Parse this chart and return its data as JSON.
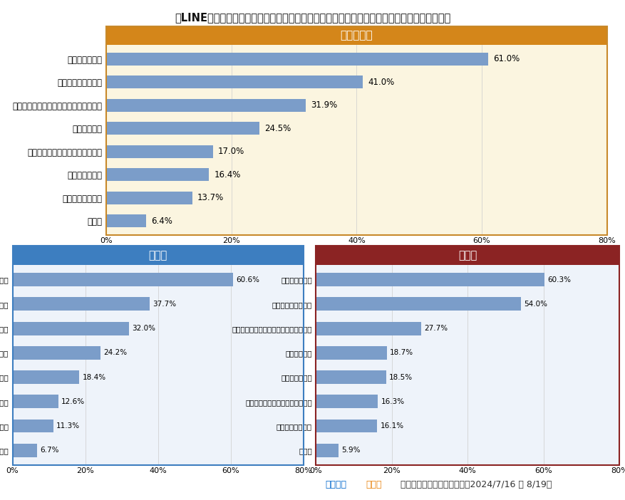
{
  "title": "》LINEを選んだ人へ「メッセージ上で会話を終わらせたいときはどうしてる？　（複数選択）",
  "overall": {
    "title": "全体グラフ",
    "title_bg": "#D4861A",
    "title_color": "#ffffff",
    "bg_color": "#FBF5E0",
    "border_color": "#C8892A",
    "categories": [
      "スタンプを送る",
      "リアクションをおす",
      "宿題や用事など理由をつけて終わらせる",
      "素直に伝える",
      "相手が終わらせてくれるのを待つ",
      "既読無視をする",
      "未読のままにする",
      "その他"
    ],
    "values": [
      61.0,
      41.0,
      31.9,
      24.5,
      17.0,
      16.4,
      13.7,
      6.4
    ],
    "bar_color": "#7B9DC9"
  },
  "elementary": {
    "title": "小学生",
    "title_bg": "#3D7EC0",
    "title_color": "#ffffff",
    "bg_color": "#EEF3FA",
    "border_color": "#3D7EC0",
    "categories": [
      "スタンプを送る",
      "宿題や用事など理由をつけて終わらせる",
      "素直に伝える",
      "リアクションをおす",
      "相手が終わらせてくれるのを待つ",
      "既読無視をする",
      "未読のままにする",
      "その他"
    ],
    "values": [
      60.6,
      37.7,
      32.0,
      24.2,
      18.4,
      12.6,
      11.3,
      6.7
    ],
    "bar_color": "#7B9DC9"
  },
  "middle": {
    "title": "中学生",
    "title_bg": "#8B2323",
    "title_color": "#ffffff",
    "bg_color": "#EEF3FA",
    "border_color": "#8B2323",
    "categories": [
      "スタンプを送る",
      "リアクションをおす",
      "宿題や用事など理由をつけて終わらせる",
      "素直に伝える",
      "既読無視をする",
      "相手が終わらせてくれるのを待つ",
      "未読のままにする",
      "その他"
    ],
    "values": [
      60.3,
      54.0,
      27.7,
      18.7,
      18.5,
      16.3,
      16.1,
      5.9
    ],
    "bar_color": "#7B9DC9"
  },
  "xlim": [
    0,
    80
  ],
  "xticks": [
    0,
    20,
    40,
    60,
    80
  ],
  "xticklabels": [
    "0%",
    "20%",
    "40%",
    "60%",
    "80%"
  ],
  "bg_outer": "#ffffff",
  "footer_blue": "ニフティ",
  "footer_orange": "キッズ",
  "footer_rest": " 調べ（アンケート実施期間：2024/7/16 ～ 8/19）"
}
